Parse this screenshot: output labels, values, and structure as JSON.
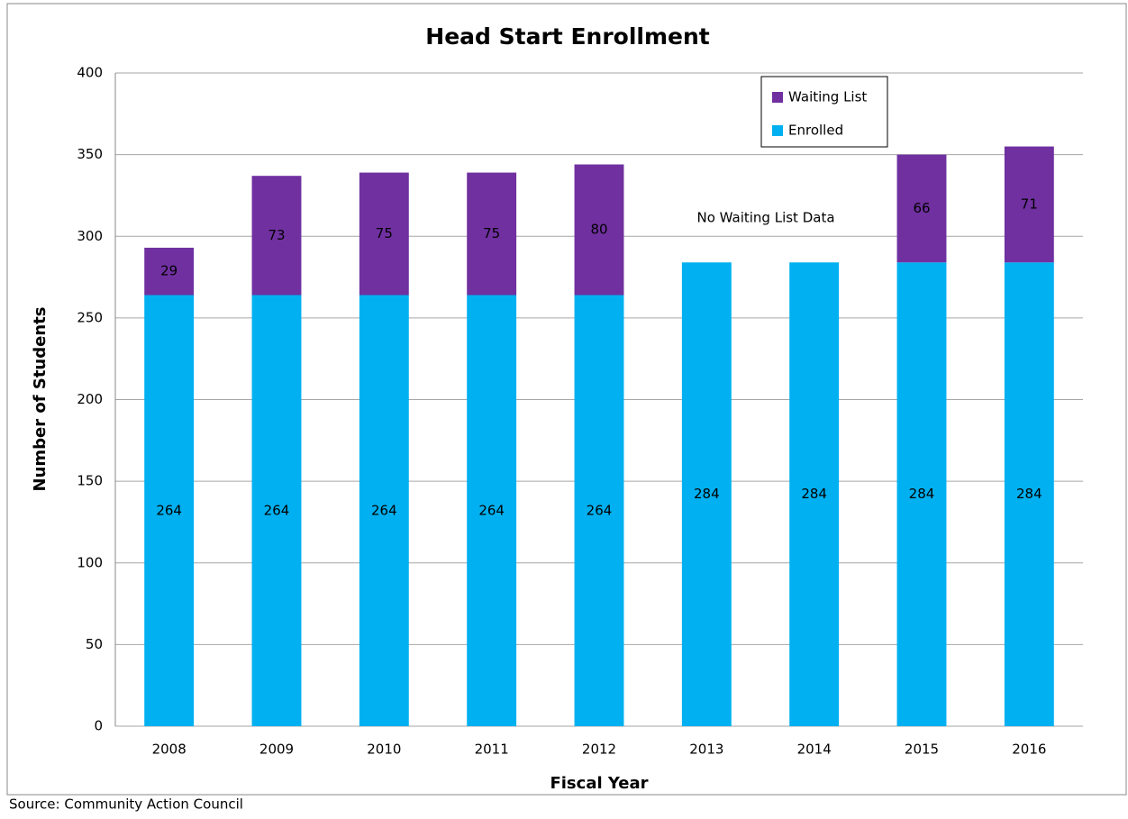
{
  "chart_data": {
    "type": "stacked_bar",
    "title": "Head Start Enrollment",
    "x_label": "Fiscal Year",
    "y_label": "Number of Students",
    "source": "Source: Community  Action Council",
    "annotation": "No Waiting List Data",
    "categories": [
      "2008",
      "2009",
      "2010",
      "2011",
      "2012",
      "2013",
      "2014",
      "2015",
      "2016"
    ],
    "series": [
      {
        "name": "Enrolled",
        "color": "#00b0f0",
        "label_color": "#000000",
        "values": [
          264,
          264,
          264,
          264,
          264,
          284,
          284,
          284,
          284
        ]
      },
      {
        "name": "Waiting List",
        "color": "#7030a0",
        "label_color": "#ffffff",
        "values": [
          29,
          73,
          75,
          75,
          80,
          null,
          null,
          66,
          71
        ]
      }
    ],
    "ylim": [
      0,
      400
    ],
    "yticks": [
      0,
      50,
      100,
      150,
      200,
      250,
      300,
      350,
      400
    ],
    "grid": true,
    "legend": "top-right"
  }
}
